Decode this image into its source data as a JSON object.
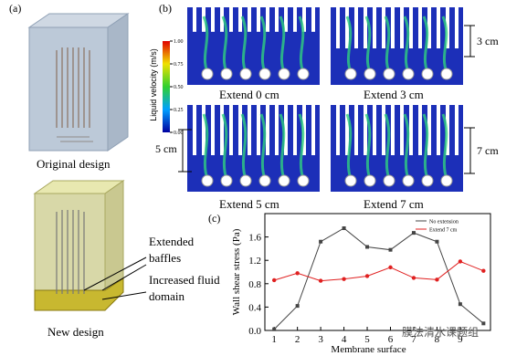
{
  "panel_a": {
    "label": "(a)",
    "original_caption": "Original design",
    "new_caption": "New design",
    "annotations": [
      "Extended baffles",
      "Increased fluid domain"
    ]
  },
  "panel_b": {
    "label": "(b)",
    "colorbar_title": "Liquid velocity (m/s)",
    "colorbar_ticks": [
      {
        "value": 1,
        "label": "1.00"
      },
      {
        "value": 0.75,
        "label": "0.75"
      },
      {
        "value": 0.5,
        "label": "0.50"
      },
      {
        "value": 0.25,
        "label": "0.25"
      },
      {
        "value": 0,
        "label": "0.00"
      }
    ],
    "colorbar_lim": [
      0,
      1
    ],
    "captions": [
      "Extend 0 cm",
      "Extend 3 cm",
      "Extend 5 cm",
      "Extend 7 cm"
    ],
    "dimensions": [
      "3 cm",
      "5 cm",
      "7 cm"
    ]
  },
  "chart_data": {
    "type": "line",
    "label": "(c)",
    "x_label": "Membrane surface",
    "y_label": "Wall shear stress (Pa)",
    "x": [
      1,
      2,
      3,
      4,
      5,
      6,
      7,
      8,
      9,
      10
    ],
    "series": [
      {
        "name": "No extension",
        "color": "#444444",
        "values": [
          0.02,
          0.42,
          1.52,
          1.75,
          1.43,
          1.38,
          1.67,
          1.52,
          0.45,
          0.12
        ]
      },
      {
        "name": "Extend 7 cm",
        "color": "#e02020",
        "values": [
          0.86,
          0.98,
          0.85,
          0.88,
          0.93,
          1.08,
          0.9,
          0.87,
          1.18,
          1.02
        ]
      }
    ],
    "xlim": [
      0.6,
      10.3
    ],
    "xticks": [
      1,
      2,
      3,
      4,
      5,
      6,
      7,
      8,
      9
    ],
    "ylim": [
      0,
      2.0
    ],
    "yticks": [
      {
        "value": 0,
        "label": "0.0"
      },
      0.4,
      0.8,
      1.2,
      1.6
    ],
    "legend": "upper right"
  },
  "watermark": "膜法清水课题组"
}
